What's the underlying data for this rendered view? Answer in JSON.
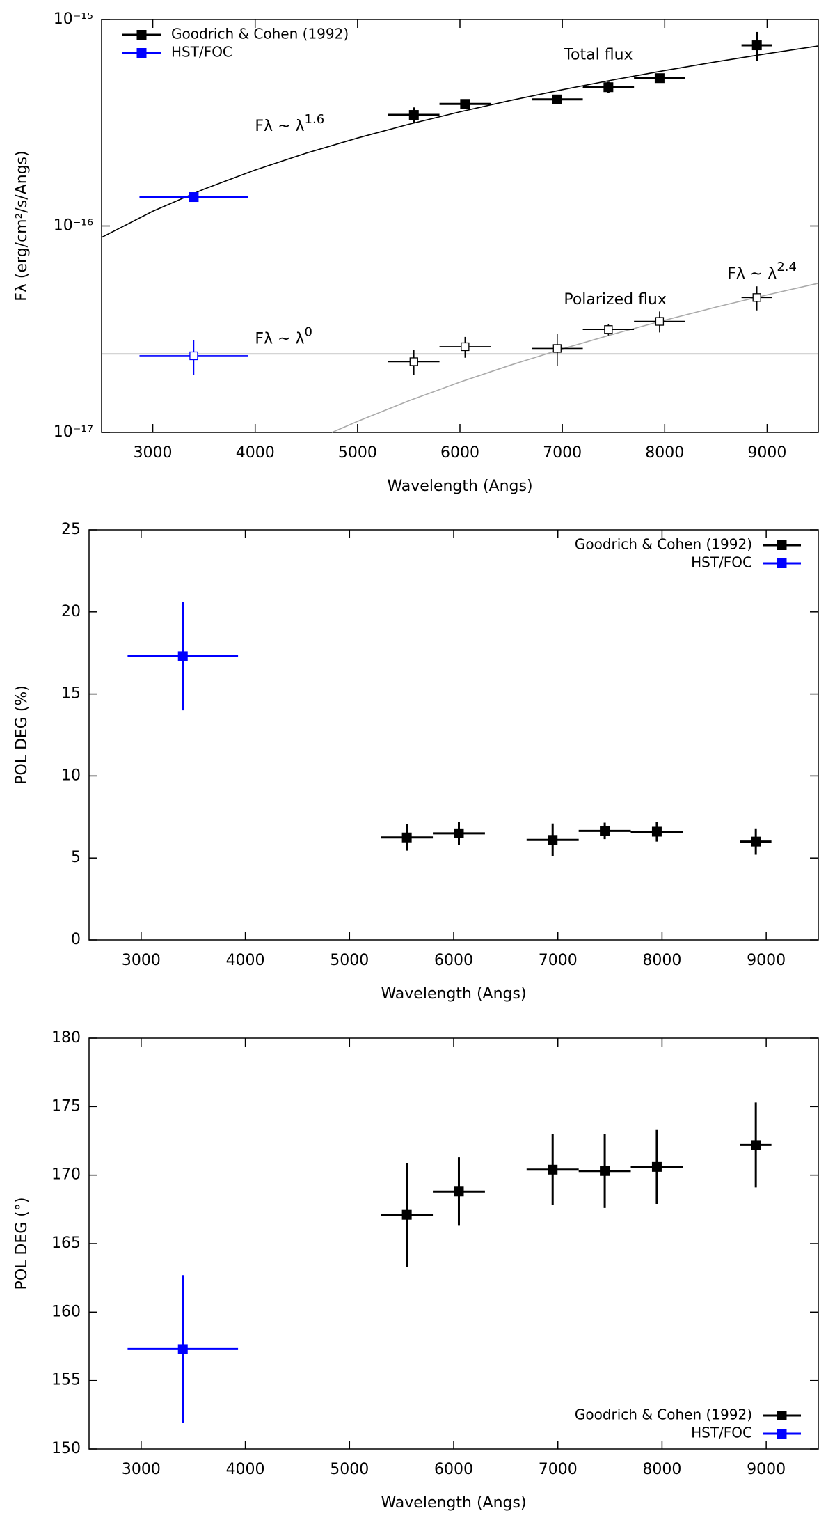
{
  "chart_data": [
    {
      "type": "scatter",
      "log_y": true,
      "legend": "upper left",
      "xlabel": "Wavelength (Angs)",
      "ylabel": "Fλ (erg/cm²/s/Angs)",
      "xlim": [
        2500,
        9500
      ],
      "xticks": [
        3000,
        4000,
        5000,
        6000,
        7000,
        8000,
        9000
      ],
      "ylim": [
        1e-17,
        1e-15
      ],
      "yticks": [
        {
          "value": 1e-17,
          "label": "10⁻¹⁷"
        },
        {
          "value": 1e-16,
          "label": "10⁻¹⁶"
        },
        {
          "value": 1e-15,
          "label": "10⁻¹⁵"
        }
      ],
      "series": [
        {
          "name": "Goodrich & Cohen (1992)",
          "color": "#000000",
          "marker": "filled",
          "x": [
            5550,
            6050,
            6950,
            7450,
            7950,
            8900
          ],
          "xerr": [
            250,
            250,
            250,
            250,
            250,
            150
          ],
          "values": [
            3.45e-16,
            3.9e-16,
            4.1e-16,
            4.7e-16,
            5.2e-16,
            7.5e-16
          ],
          "yerr": [
            3e-17,
            1e-17,
            1.5e-17,
            3e-17,
            1.5e-17,
            1.2e-16
          ]
        },
        {
          "name": "HST/FOC",
          "color": "#0000ff",
          "marker": "filled",
          "x": [
            3400
          ],
          "xerr": [
            530
          ],
          "values": [
            1.38e-16
          ],
          "yerr": [
            5e-18
          ]
        },
        {
          "color": "#000000",
          "marker": "open",
          "x": [
            5550,
            6050,
            6950,
            7450,
            7950,
            8900
          ],
          "xerr": [
            250,
            250,
            250,
            250,
            250,
            150
          ],
          "values": [
            2.2e-17,
            2.6e-17,
            2.55e-17,
            3.15e-17,
            3.45e-17,
            4.5e-17
          ],
          "yerr": [
            3e-18,
            3e-18,
            4.5e-18,
            2e-18,
            4e-18,
            6e-18
          ]
        },
        {
          "color": "#0000ff",
          "marker": "open",
          "x": [
            3400
          ],
          "xerr": [
            530
          ],
          "values": [
            2.35e-17
          ],
          "yerr": [
            4.5e-18
          ]
        }
      ],
      "curves": [
        {
          "color": "#000000",
          "x": [
            2500,
            3000,
            3500,
            4000,
            4500,
            5000,
            5500,
            6000,
            6500,
            7000,
            7500,
            8000,
            8500,
            9000,
            9500
          ],
          "values": [
            8.8e-17,
            1.178e-16,
            1.508e-16,
            1.867e-16,
            2.254e-16,
            2.667e-16,
            3.107e-16,
            3.571e-16,
            4.06e-16,
            4.571e-16,
            5.104e-16,
            5.659e-16,
            6.236e-16,
            6.832e-16,
            7.45e-16
          ]
        },
        {
          "color": "#aaaaaa",
          "x": [
            4750,
            5000,
            5500,
            6000,
            6500,
            7000,
            7500,
            8000,
            8500,
            9000,
            9500
          ],
          "values": [
            1e-17,
            1.131e-17,
            1.422e-17,
            1.752e-17,
            2.123e-17,
            2.536e-17,
            2.993e-17,
            3.494e-17,
            4.042e-17,
            4.636e-17,
            5.278e-17
          ]
        },
        {
          "color": "#aaaaaa",
          "x": [
            2500,
            9500
          ],
          "values": [
            2.4e-17,
            2.4e-17
          ]
        }
      ],
      "annotations": [
        {
          "text": "Total flux"
        },
        {
          "text": "Fλ ~ λ",
          "sup": "1.6"
        },
        {
          "text": "Polarized flux"
        },
        {
          "text": "Fλ ~ λ",
          "sup": "0"
        },
        {
          "text": "Fλ ~ λ",
          "sup": "2.4"
        }
      ]
    },
    {
      "type": "scatter",
      "legend": "upper right",
      "xlabel": "Wavelength (Angs)",
      "ylabel": "POL DEG (%)",
      "xlim": [
        2500,
        9500
      ],
      "xticks": [
        3000,
        4000,
        5000,
        6000,
        7000,
        8000,
        9000
      ],
      "ylim": [
        0,
        25
      ],
      "yticks": [
        0,
        5,
        10,
        15,
        20,
        25
      ],
      "series": [
        {
          "name": "Goodrich & Cohen (1992)",
          "color": "#000000",
          "marker": "filled",
          "x": [
            5550,
            6050,
            6950,
            7450,
            7950,
            8900
          ],
          "xerr": [
            250,
            250,
            250,
            250,
            250,
            150
          ],
          "values": [
            6.25,
            6.5,
            6.1,
            6.65,
            6.6,
            6.0
          ],
          "yerr": [
            0.8,
            0.7,
            1.0,
            0.5,
            0.6,
            0.8
          ]
        },
        {
          "name": "HST/FOC",
          "color": "#0000ff",
          "marker": "filled",
          "x": [
            3400
          ],
          "xerr": [
            530
          ],
          "values": [
            17.3
          ],
          "yerr": [
            3.3
          ]
        }
      ]
    },
    {
      "type": "scatter",
      "legend": "lower right",
      "xlabel": "Wavelength (Angs)",
      "ylabel": "POL DEG (°)",
      "xlim": [
        2500,
        9500
      ],
      "xticks": [
        3000,
        4000,
        5000,
        6000,
        7000,
        8000,
        9000
      ],
      "ylim": [
        150,
        180
      ],
      "yticks": [
        150,
        155,
        160,
        165,
        170,
        175,
        180
      ],
      "series": [
        {
          "name": "Goodrich & Cohen (1992)",
          "color": "#000000",
          "marker": "filled",
          "x": [
            5550,
            6050,
            6950,
            7450,
            7950,
            8900
          ],
          "xerr": [
            250,
            250,
            250,
            250,
            250,
            150
          ],
          "values": [
            167.1,
            168.8,
            170.4,
            170.3,
            170.6,
            172.2
          ],
          "yerr": [
            3.8,
            2.5,
            2.6,
            2.7,
            2.7,
            3.1
          ]
        },
        {
          "name": "HST/FOC",
          "color": "#0000ff",
          "marker": "filled",
          "x": [
            3400
          ],
          "xerr": [
            530
          ],
          "values": [
            157.3
          ],
          "yerr": [
            5.4
          ]
        }
      ]
    }
  ]
}
